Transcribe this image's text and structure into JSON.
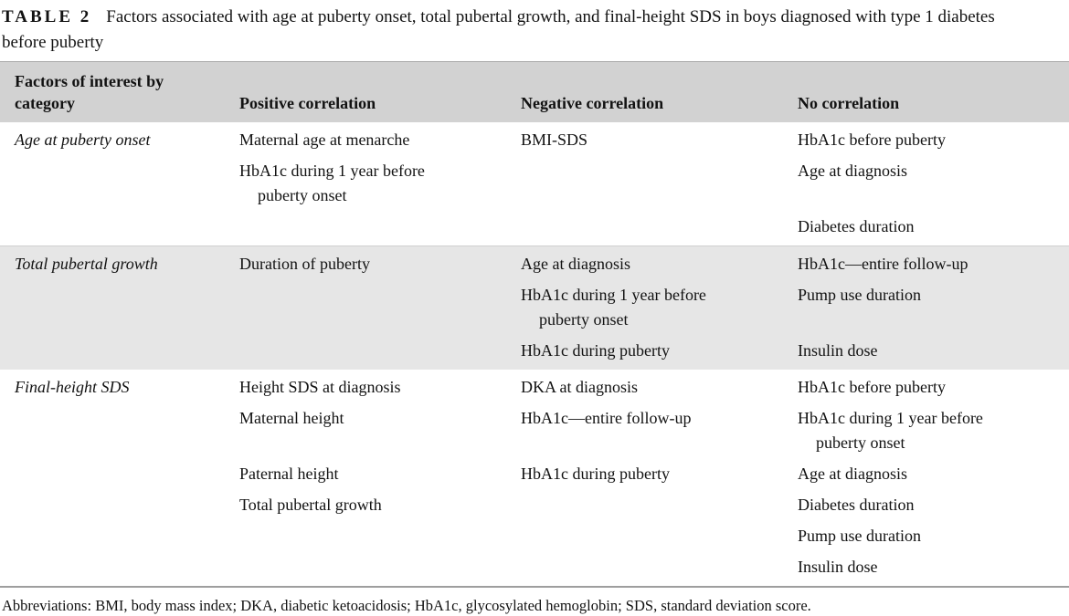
{
  "caption": {
    "label": "TABLE 2",
    "text": "Factors associated with age at puberty onset, total pubertal growth, and final-height SDS in boys diagnosed with type 1 diabetes before puberty"
  },
  "table": {
    "columns": [
      "Factors of interest by category",
      "Positive correlation",
      "Negative correlation",
      "No correlation"
    ],
    "rows": [
      {
        "category": "Age at puberty onset",
        "shaded": false,
        "lines": [
          {
            "positive": "Maternal age at menarche",
            "negative": "BMI-SDS",
            "none": "HbA1c before puberty"
          },
          {
            "positive": "HbA1c during 1 year before puberty onset",
            "none": "Age at diagnosis"
          },
          {
            "none": "Diabetes duration"
          }
        ]
      },
      {
        "category": "Total pubertal growth",
        "shaded": true,
        "lines": [
          {
            "positive": "Duration of puberty",
            "negative": "Age at diagnosis",
            "none": "HbA1c—entire follow-up"
          },
          {
            "negative": "HbA1c during 1 year before puberty onset",
            "none": "Pump use duration"
          },
          {
            "negative": "HbA1c during puberty",
            "none": "Insulin dose"
          }
        ]
      },
      {
        "category": "Final-height SDS",
        "shaded": false,
        "lines": [
          {
            "positive": "Height SDS at diagnosis",
            "negative": "DKA at diagnosis",
            "none": "HbA1c before puberty"
          },
          {
            "positive": "Maternal height",
            "negative": "HbA1c—entire follow-up",
            "none": "HbA1c during 1 year before puberty onset"
          },
          {
            "positive": "Paternal height",
            "negative": "HbA1c during puberty",
            "none": "Age at diagnosis"
          },
          {
            "positive": "Total pubertal growth",
            "none": "Diabetes duration"
          },
          {
            "none": "Pump use duration"
          },
          {
            "none": "Insulin dose"
          }
        ]
      }
    ]
  },
  "footnote": "Abbreviations: BMI, body mass index; DKA, diabetic ketoacidosis; HbA1c, glycosylated hemoglobin; SDS, standard deviation score.",
  "colors": {
    "header_bg": "#d2d2d2",
    "row_shade_bg": "#e6e6e6",
    "rule": "#9e9e9e",
    "text": "#121212"
  }
}
